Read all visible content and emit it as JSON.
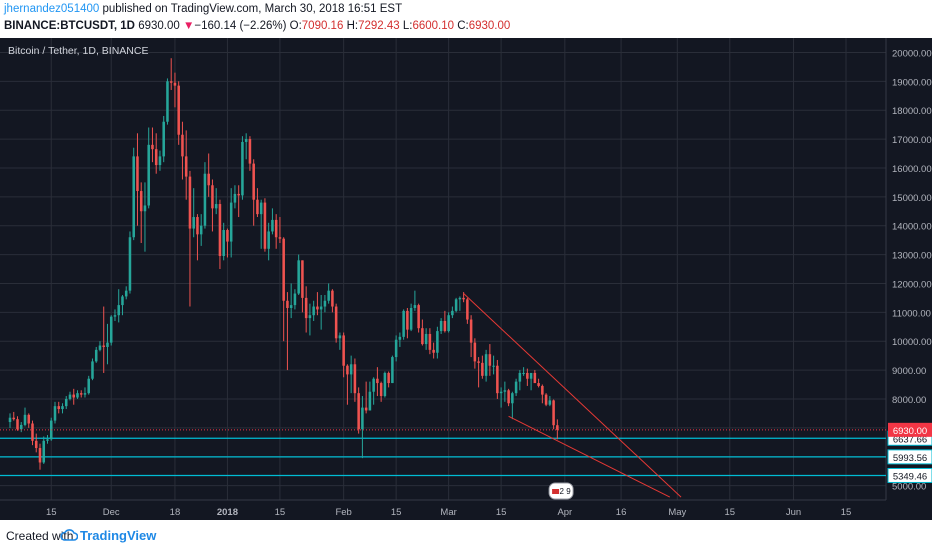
{
  "header": {
    "author": "jhernandez051400",
    "published_text": "published on TradingView.com, March 30, 2018 16:51 EST",
    "symbol": "BINANCE:BTCUSDT, 1D",
    "last": "6930.00",
    "change_arrow": "▼",
    "change": "−160.14 (−2.26%)",
    "o_label": "O:",
    "o_value": "7090.16",
    "h_label": "H:",
    "h_value": "7292.43",
    "l_label": "L:",
    "l_value": "6600.10",
    "c_label": "C:",
    "c_value": "6930.00"
  },
  "chart_title": "Bitcoin / Tether, 1D, BINANCE",
  "footer": {
    "created_with": "Created with",
    "brand": "TradingView",
    "logo_icon": "tradingview-cloud-icon"
  },
  "colors": {
    "background": "#131722",
    "grid": "#2a2e39",
    "up": "#26a69a",
    "down": "#ef5350",
    "price_tag": "#f23645",
    "level_line": "#00bcd4",
    "trendline": "#e53935",
    "axis_text": "#b2b5be"
  },
  "chart_data": {
    "type": "candlestick",
    "title": "Bitcoin / Tether, 1D, BINANCE",
    "ylim": [
      4500,
      20500
    ],
    "y_ticks": [
      "5000.00",
      "6000.00",
      "7000.00",
      "8000.00",
      "9000.00",
      "10000.00",
      "11000.00",
      "12000.00",
      "13000.00",
      "14000.00",
      "15000.00",
      "16000.00",
      "17000.00",
      "18000.00",
      "19000.00",
      "20000.00"
    ],
    "x_ticks": [
      "15",
      "Dec",
      "18",
      "2018",
      "15",
      "Feb",
      "15",
      "Mar",
      "15",
      "Apr",
      "16",
      "May",
      "15",
      "Jun",
      "15"
    ],
    "x_tick_dates": [
      "2017-11-15",
      "2017-12-01",
      "2017-12-18",
      "2018-01-01",
      "2018-01-15",
      "2018-02-01",
      "2018-02-15",
      "2018-03-01",
      "2018-03-15",
      "2018-04-01",
      "2018-04-16",
      "2018-05-01",
      "2018-05-15",
      "2018-06-01",
      "2018-06-15"
    ],
    "xlim_dates": [
      "2017-11-04",
      "2018-06-23"
    ],
    "last_price": {
      "value": 6930.0,
      "label": "6930.00"
    },
    "levels": [
      {
        "value": 6637.66,
        "label": "6637.66"
      },
      {
        "value": 5993.56,
        "label": "5993.56"
      },
      {
        "value": 5349.46,
        "label": "5349.46"
      }
    ],
    "trendlines": [
      {
        "from": [
          "2018-03-05",
          11650
        ],
        "to": [
          "2018-05-02",
          4600
        ]
      },
      {
        "from": [
          "2018-03-17",
          7400
        ],
        "to": [
          "2018-04-29",
          4600
        ]
      }
    ],
    "event_badge": {
      "date": "2018-03-31",
      "label": "2 9"
    },
    "candles": [
      [
        "2017-11-04",
        7200,
        7500,
        7000,
        7350
      ],
      [
        "2017-11-05",
        7350,
        7550,
        7250,
        7300
      ],
      [
        "2017-11-06",
        7300,
        7400,
        6900,
        6950
      ],
      [
        "2017-11-07",
        6950,
        7200,
        6850,
        7100
      ],
      [
        "2017-11-08",
        7100,
        7700,
        7050,
        7450
      ],
      [
        "2017-11-09",
        7450,
        7500,
        7000,
        7150
      ],
      [
        "2017-11-10",
        7150,
        7250,
        6400,
        6550
      ],
      [
        "2017-11-11",
        6550,
        6800,
        6150,
        6300
      ],
      [
        "2017-11-12",
        6300,
        6450,
        5550,
        5800
      ],
      [
        "2017-11-13",
        5800,
        6700,
        5750,
        6550
      ],
      [
        "2017-11-14",
        6550,
        6750,
        6450,
        6600
      ],
      [
        "2017-11-15",
        6600,
        7350,
        6550,
        7250
      ],
      [
        "2017-11-16",
        7250,
        7900,
        7150,
        7750
      ],
      [
        "2017-11-17",
        7750,
        7900,
        7500,
        7650
      ],
      [
        "2017-11-18",
        7650,
        7850,
        7500,
        7750
      ],
      [
        "2017-11-19",
        7750,
        8100,
        7650,
        8000
      ],
      [
        "2017-11-20",
        8000,
        8250,
        7950,
        8150
      ],
      [
        "2017-11-21",
        8150,
        8350,
        7800,
        8050
      ],
      [
        "2017-11-22",
        8050,
        8300,
        8000,
        8200
      ],
      [
        "2017-11-23",
        8200,
        8300,
        8050,
        8150
      ],
      [
        "2017-11-24",
        8150,
        8400,
        8050,
        8200
      ],
      [
        "2017-11-25",
        8200,
        8800,
        8150,
        8700
      ],
      [
        "2017-11-26",
        8700,
        9400,
        8650,
        9300
      ],
      [
        "2017-11-27",
        9300,
        9800,
        9250,
        9700
      ],
      [
        "2017-11-28",
        9700,
        10000,
        9650,
        9850
      ],
      [
        "2017-11-29",
        9850,
        11200,
        8900,
        9800
      ],
      [
        "2017-11-30",
        9800,
        10600,
        9200,
        9950
      ],
      [
        "2017-12-01",
        9950,
        10900,
        9850,
        10850
      ],
      [
        "2017-12-02",
        10850,
        11100,
        10700,
        10900
      ],
      [
        "2017-12-03",
        10900,
        11800,
        10650,
        11250
      ],
      [
        "2017-12-04",
        11250,
        11600,
        10900,
        11550
      ],
      [
        "2017-12-05",
        11550,
        11900,
        11450,
        11750
      ],
      [
        "2017-12-06",
        11750,
        13800,
        11650,
        13600
      ],
      [
        "2017-12-07",
        13600,
        16700,
        13500,
        16400
      ],
      [
        "2017-12-08",
        16400,
        17200,
        14000,
        15200
      ],
      [
        "2017-12-09",
        15200,
        15500,
        13400,
        14500
      ],
      [
        "2017-12-10",
        14500,
        15500,
        13100,
        14700
      ],
      [
        "2017-12-11",
        14700,
        17400,
        14600,
        16800
      ],
      [
        "2017-12-12",
        16800,
        17400,
        16200,
        16650
      ],
      [
        "2017-12-13",
        16650,
        17200,
        15800,
        16100
      ],
      [
        "2017-12-14",
        16100,
        16600,
        15900,
        16400
      ],
      [
        "2017-12-15",
        16400,
        17800,
        16200,
        17600
      ],
      [
        "2017-12-16",
        17600,
        19100,
        17500,
        19000
      ],
      [
        "2017-12-17",
        19000,
        19800,
        18700,
        18950
      ],
      [
        "2017-12-18",
        18950,
        19300,
        18100,
        18850
      ],
      [
        "2017-12-19",
        18850,
        19000,
        16800,
        17150
      ],
      [
        "2017-12-20",
        17150,
        17600,
        15600,
        16400
      ],
      [
        "2017-12-21",
        16400,
        17300,
        14900,
        15700
      ],
      [
        "2017-12-22",
        15700,
        15900,
        11200,
        13900
      ],
      [
        "2017-12-23",
        13900,
        15300,
        13600,
        14300
      ],
      [
        "2017-12-24",
        14300,
        14400,
        12800,
        13700
      ],
      [
        "2017-12-25",
        13700,
        14400,
        13300,
        14000
      ],
      [
        "2017-12-26",
        14000,
        16200,
        13900,
        15800
      ],
      [
        "2017-12-27",
        15800,
        16500,
        15000,
        15400
      ],
      [
        "2017-12-28",
        15400,
        15600,
        13800,
        14600
      ],
      [
        "2017-12-29",
        14600,
        15300,
        14400,
        14750
      ],
      [
        "2017-12-30",
        14750,
        14900,
        12500,
        12950
      ],
      [
        "2017-12-31",
        12950,
        14100,
        12800,
        13850
      ],
      [
        "2018-01-01",
        13850,
        13900,
        12900,
        13450
      ],
      [
        "2018-01-02",
        13450,
        15300,
        12900,
        14800
      ],
      [
        "2018-01-03",
        14800,
        15400,
        14600,
        15100
      ],
      [
        "2018-01-04",
        15100,
        15400,
        14300,
        15050
      ],
      [
        "2018-01-05",
        15050,
        17100,
        14900,
        16900
      ],
      [
        "2018-01-06",
        16900,
        17200,
        16300,
        17000
      ],
      [
        "2018-01-07",
        17000,
        17100,
        15900,
        16150
      ],
      [
        "2018-01-08",
        16150,
        16300,
        14000,
        14900
      ],
      [
        "2018-01-09",
        14900,
        15300,
        14300,
        14400
      ],
      [
        "2018-01-10",
        14400,
        14900,
        13200,
        14800
      ],
      [
        "2018-01-11",
        14800,
        14950,
        13100,
        13200
      ],
      [
        "2018-01-12",
        13200,
        14100,
        12800,
        13800
      ],
      [
        "2018-01-13",
        13800,
        14600,
        13700,
        14200
      ],
      [
        "2018-01-14",
        14200,
        14400,
        13200,
        13600
      ],
      [
        "2018-01-15",
        13600,
        14300,
        13400,
        13550
      ],
      [
        "2018-01-16",
        13550,
        13600,
        10000,
        11400
      ],
      [
        "2018-01-17",
        11400,
        11700,
        9000,
        11150
      ],
      [
        "2018-01-18",
        11150,
        12000,
        10800,
        11250
      ],
      [
        "2018-01-19",
        11250,
        11800,
        11100,
        11650
      ],
      [
        "2018-01-20",
        11650,
        13000,
        11600,
        12800
      ],
      [
        "2018-01-21",
        12800,
        12800,
        11000,
        11500
      ],
      [
        "2018-01-22",
        11500,
        11900,
        10300,
        10800
      ],
      [
        "2018-01-23",
        10800,
        11300,
        10200,
        10900
      ],
      [
        "2018-01-24",
        10900,
        11400,
        10700,
        11200
      ],
      [
        "2018-01-25",
        11200,
        11700,
        10900,
        11100
      ],
      [
        "2018-01-26",
        11100,
        11600,
        10400,
        11200
      ],
      [
        "2018-01-27",
        11200,
        11600,
        11000,
        11400
      ],
      [
        "2018-01-28",
        11400,
        12000,
        11300,
        11750
      ],
      [
        "2018-01-29",
        11750,
        11800,
        11000,
        11200
      ],
      [
        "2018-01-30",
        11200,
        11300,
        9950,
        10100
      ],
      [
        "2018-01-31",
        10100,
        10300,
        9700,
        10200
      ],
      [
        "2018-02-01",
        10200,
        10300,
        8750,
        9150
      ],
      [
        "2018-02-02",
        9150,
        9200,
        7800,
        8850
      ],
      [
        "2018-02-03",
        8850,
        9500,
        8200,
        9200
      ],
      [
        "2018-02-04",
        9200,
        9400,
        7900,
        8200
      ],
      [
        "2018-02-05",
        8200,
        8400,
        6800,
        6950
      ],
      [
        "2018-02-06",
        6950,
        8100,
        5950,
        7700
      ],
      [
        "2018-02-07",
        7700,
        8600,
        7500,
        7600
      ],
      [
        "2018-02-08",
        7600,
        8600,
        7600,
        8250
      ],
      [
        "2018-02-09",
        8250,
        8750,
        7800,
        8700
      ],
      [
        "2018-02-10",
        8700,
        9100,
        8100,
        8550
      ],
      [
        "2018-02-11",
        8550,
        8600,
        7900,
        8100
      ],
      [
        "2018-02-12",
        8100,
        8950,
        8050,
        8900
      ],
      [
        "2018-02-13",
        8900,
        8950,
        8400,
        8550
      ],
      [
        "2018-02-14",
        8550,
        9500,
        8550,
        9450
      ],
      [
        "2018-02-15",
        9450,
        10200,
        9300,
        10050
      ],
      [
        "2018-02-16",
        10050,
        10300,
        9800,
        10150
      ],
      [
        "2018-02-17",
        10150,
        11100,
        10050,
        11050
      ],
      [
        "2018-02-18",
        11050,
        11150,
        10100,
        10400
      ],
      [
        "2018-02-19",
        10400,
        11300,
        10350,
        11150
      ],
      [
        "2018-02-20",
        11150,
        11750,
        11050,
        11250
      ],
      [
        "2018-02-21",
        11250,
        11300,
        10300,
        10450
      ],
      [
        "2018-02-22",
        10450,
        10750,
        9850,
        9900
      ],
      [
        "2018-02-23",
        9900,
        10450,
        9700,
        10250
      ],
      [
        "2018-02-24",
        10250,
        10450,
        9550,
        9700
      ],
      [
        "2018-02-25",
        9700,
        9950,
        9400,
        9600
      ],
      [
        "2018-02-26",
        9600,
        10500,
        9400,
        10350
      ],
      [
        "2018-02-27",
        10350,
        10800,
        10250,
        10700
      ],
      [
        "2018-02-28",
        10700,
        11050,
        10300,
        10350
      ],
      [
        "2018-03-01",
        10350,
        11000,
        10300,
        10900
      ],
      [
        "2018-03-02",
        10900,
        11200,
        10800,
        11050
      ],
      [
        "2018-03-03",
        11050,
        11500,
        11000,
        11450
      ],
      [
        "2018-03-04",
        11450,
        11550,
        11050,
        11500
      ],
      [
        "2018-03-05",
        11500,
        11700,
        11350,
        11450
      ],
      [
        "2018-03-06",
        11450,
        11500,
        10600,
        10750
      ],
      [
        "2018-03-07",
        10750,
        10900,
        9450,
        9950
      ],
      [
        "2018-03-08",
        9950,
        10100,
        9050,
        9300
      ],
      [
        "2018-03-09",
        9300,
        9450,
        8400,
        9250
      ],
      [
        "2018-03-10",
        9250,
        9500,
        8700,
        8800
      ],
      [
        "2018-03-11",
        8800,
        9700,
        8600,
        9550
      ],
      [
        "2018-03-12",
        9550,
        9900,
        8800,
        9150
      ],
      [
        "2018-03-13",
        9150,
        9500,
        8850,
        9150
      ],
      [
        "2018-03-14",
        9150,
        9350,
        8000,
        8200
      ],
      [
        "2018-03-15",
        8200,
        8400,
        7700,
        8250
      ],
      [
        "2018-03-16",
        8250,
        8600,
        7900,
        8300
      ],
      [
        "2018-03-17",
        8300,
        8350,
        7750,
        7850
      ],
      [
        "2018-03-18",
        7850,
        8250,
        7300,
        8200
      ],
      [
        "2018-03-19",
        8200,
        8700,
        8100,
        8600
      ],
      [
        "2018-03-20",
        8600,
        9000,
        8300,
        8900
      ],
      [
        "2018-03-21",
        8900,
        9100,
        8800,
        8900
      ],
      [
        "2018-03-22",
        8900,
        9050,
        8450,
        8700
      ],
      [
        "2018-03-23",
        8700,
        8900,
        8300,
        8900
      ],
      [
        "2018-03-24",
        8900,
        9000,
        8550,
        8550
      ],
      [
        "2018-03-25",
        8550,
        8700,
        8400,
        8450
      ],
      [
        "2018-03-26",
        8450,
        8500,
        7850,
        8150
      ],
      [
        "2018-03-27",
        8150,
        8200,
        7750,
        7800
      ],
      [
        "2018-03-28",
        7800,
        8100,
        7750,
        7950
      ],
      [
        "2018-03-29",
        7950,
        7980,
        6950,
        7090
      ],
      [
        "2018-03-30",
        7090,
        7292,
        6600,
        6930
      ]
    ]
  }
}
